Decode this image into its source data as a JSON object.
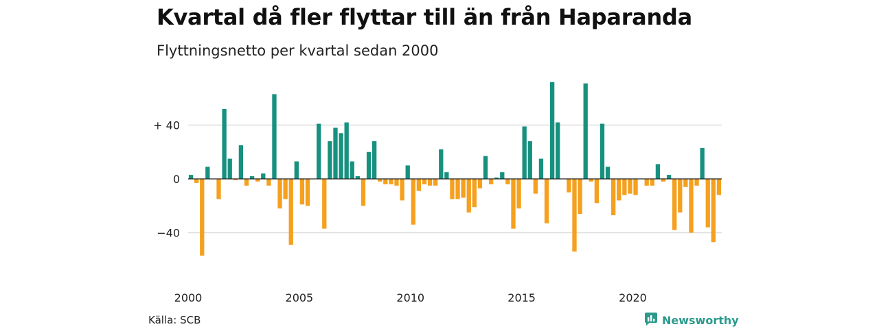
{
  "title": "Kvartal då fler flyttar till än från Haparanda",
  "subtitle": "Flyttningsnetto per kvartal sedan 2000",
  "source": "Källa: SCB",
  "brand": {
    "name": "Newsworthy",
    "icon": "newsworthy-logo-icon"
  },
  "colors": {
    "positive": "#17917f",
    "negative": "#f5a01e",
    "grid": "#dddddd",
    "axis": "#222222",
    "brand": "#2b9a8c"
  },
  "chart_data": {
    "type": "bar",
    "title": "Kvartal då fler flyttar till än från Haparanda",
    "subtitle": "Flyttningsnetto per kvartal sedan 2000",
    "x_start": "2000 Q1",
    "frequency": "quarterly",
    "ylim": [
      -60,
      72
    ],
    "yticks": [
      40,
      0,
      -40
    ],
    "ytick_labels": [
      "+ 40",
      "0",
      "−40"
    ],
    "xticks": [
      "2000",
      "2005",
      "2010",
      "2015",
      "2020"
    ],
    "grid": "horizontal",
    "values": [
      3,
      -3,
      -57,
      9,
      0,
      -15,
      52,
      15,
      -1,
      25,
      -5,
      2,
      -2,
      4,
      -5,
      63,
      -22,
      -15,
      -49,
      13,
      -19,
      -20,
      0,
      41,
      -37,
      28,
      38,
      34,
      42,
      13,
      2,
      -20,
      20,
      28,
      -2,
      -4,
      -4,
      -5,
      -16,
      10,
      -34,
      -9,
      -4,
      -5,
      -5,
      22,
      5,
      -15,
      -15,
      -14,
      -25,
      -21,
      -7,
      17,
      -4,
      1,
      5,
      -4,
      -37,
      -22,
      39,
      28,
      -11,
      15,
      -33,
      72,
      42,
      0,
      -10,
      -54,
      -26,
      71,
      -2,
      -18,
      41,
      9,
      -27,
      -16,
      -12,
      -11,
      -12,
      0,
      -5,
      -5,
      11,
      -2,
      3,
      -38,
      -25,
      -6,
      -40,
      -5,
      23,
      -36,
      -47,
      -12
    ]
  }
}
